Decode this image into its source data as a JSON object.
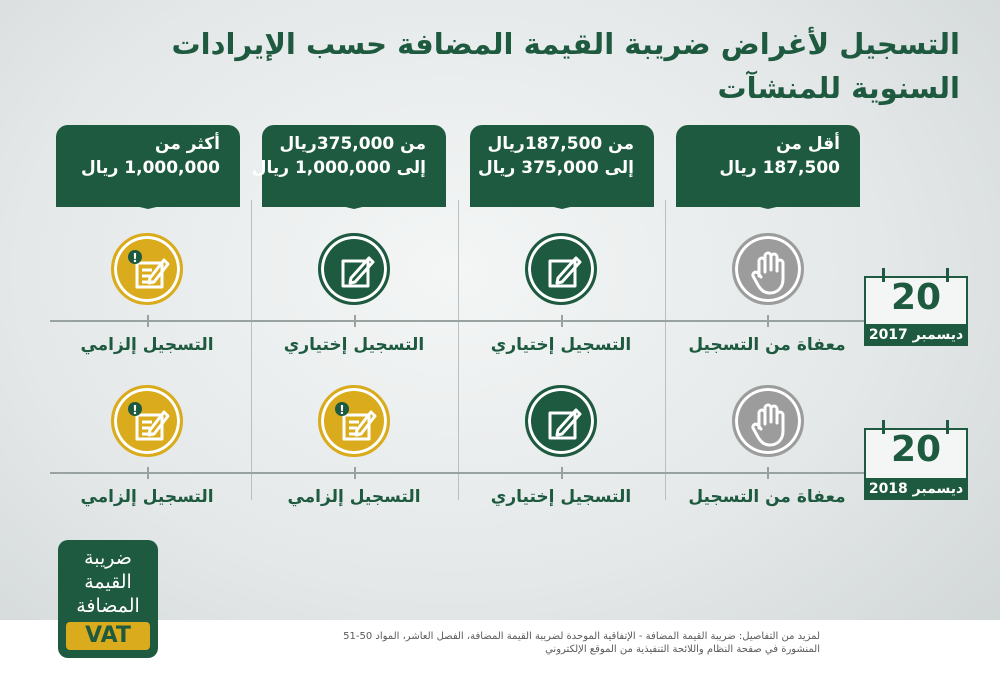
{
  "title": {
    "line1": "التسجيل لأغراض ضريبة القيمة المضافة حسب الإيرادات",
    "line2": "السنوية للمنشآت"
  },
  "columns": [
    {
      "line1": "أقل من",
      "line2": "187,500 ريال"
    },
    {
      "line1": "من 187,500ريال",
      "line2": "إلى 375,000 ريال"
    },
    {
      "line1": "من 375,000ريال",
      "line2": "إلى 1,000,000 ريال"
    },
    {
      "line1": "أكثر من",
      "line2": "1,000,000 ريال"
    }
  ],
  "rows": [
    {
      "date_day": "20",
      "date_month": "ديسمبر 2017",
      "cells": [
        {
          "status": "exempt",
          "label": "معفاة من التسجيل",
          "icon": "hand-stop-icon"
        },
        {
          "status": "optional",
          "label": "التسجيل إختياري",
          "icon": "pencil-square-icon"
        },
        {
          "status": "optional",
          "label": "التسجيل إختياري",
          "icon": "pencil-square-icon"
        },
        {
          "status": "mandatory",
          "label": "التسجيل إلزامي",
          "icon": "document-alert-icon"
        }
      ]
    },
    {
      "date_day": "20",
      "date_month": "ديسمبر 2018",
      "cells": [
        {
          "status": "exempt",
          "label": "معفاة من التسجيل",
          "icon": "hand-stop-icon"
        },
        {
          "status": "optional",
          "label": "التسجيل إختياري",
          "icon": "pencil-square-icon"
        },
        {
          "status": "mandatory",
          "label": "التسجيل إلزامي",
          "icon": "document-alert-icon"
        },
        {
          "status": "mandatory",
          "label": "التسجيل إلزامي",
          "icon": "document-alert-icon"
        }
      ]
    }
  ],
  "logo": {
    "line1": "ضريبة",
    "line2": "القيمة",
    "line3": "المضافة",
    "badge": "VAT"
  },
  "footer": {
    "line1": "لمزيد من التفاصيل: ضريبة القيمة المضافة - الإتفاقية الموحدة لضريبة القيمة المضافة، الفصل العاشر، المواد 50-51",
    "line2": "المنشورة في صفحة النظام واللائحة التنفيذية من الموقع الإلكتروني"
  },
  "colors": {
    "brand_green": "#1e5a3f",
    "mandatory_gold": "#d9ab1d",
    "exempt_gray": "#9c9c9c"
  }
}
